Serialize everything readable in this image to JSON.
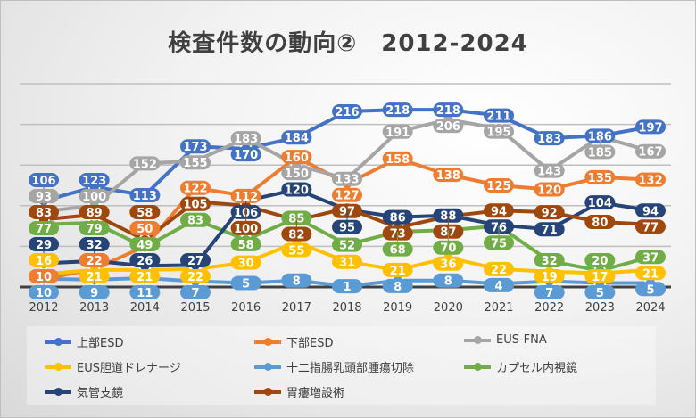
{
  "chart_data": {
    "type": "line",
    "title": "検査件数の動向②　2012-2024",
    "x": [
      "2012",
      "2013",
      "2014",
      "2015",
      "2016",
      "2017",
      "2018",
      "2019",
      "2020",
      "2021",
      "2022",
      "2023",
      "2024"
    ],
    "ylim": [
      0,
      250
    ],
    "grid": true,
    "legend_position": "bottom",
    "series": [
      {
        "name": "上部ESD",
        "color": "#4472c4",
        "values": [
          106,
          123,
          113,
          173,
          170,
          184,
          216,
          218,
          218,
          211,
          183,
          186,
          197
        ]
      },
      {
        "name": "下部ESD",
        "color": "#ed7d31",
        "values": [
          10,
          22,
          50,
          122,
          112,
          160,
          127,
          158,
          138,
          125,
          120,
          135,
          132
        ]
      },
      {
        "name": "EUS-FNA",
        "color": "#a5a5a5",
        "values": [
          93,
          100,
          152,
          155,
          183,
          150,
          133,
          191,
          206,
          195,
          143,
          185,
          167
        ]
      },
      {
        "name": "EUS胆道ドレナージ",
        "color": "#ffc000",
        "values": [
          16,
          21,
          21,
          22,
          30,
          55,
          31,
          21,
          36,
          22,
          19,
          17,
          21
        ]
      },
      {
        "name": "十二指腸乳頭部腫瘍切除",
        "color": "#5b9bd5",
        "values": [
          10,
          9,
          11,
          7,
          5,
          8,
          1,
          8,
          8,
          4,
          7,
          5,
          5
        ]
      },
      {
        "name": "カプセル内視鏡",
        "color": "#70ad47",
        "values": [
          77,
          79,
          49,
          83,
          58,
          85,
          52,
          68,
          70,
          75,
          32,
          20,
          37
        ]
      },
      {
        "name": "気管支鏡",
        "color": "#264478",
        "values": [
          29,
          32,
          26,
          27,
          106,
          120,
          95,
          86,
          88,
          76,
          71,
          104,
          94
        ]
      },
      {
        "name": "胃瘻増設術",
        "color": "#9e480e",
        "values": [
          83,
          89,
          58,
          105,
          100,
          82,
          97,
          73,
          87,
          94,
          92,
          80,
          77
        ]
      }
    ]
  }
}
